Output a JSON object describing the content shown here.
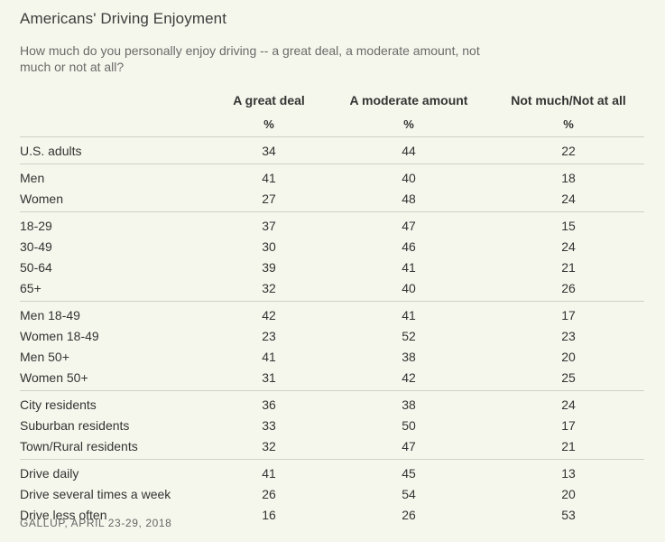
{
  "title": "Americans' Driving Enjoyment",
  "subtitle": "How much do you personally enjoy driving -- a great deal, a moderate amount, not much or not at all?",
  "columns": [
    "A great deal",
    "A moderate amount",
    "Not much/Not at all"
  ],
  "units": [
    "%",
    "%",
    "%"
  ],
  "groups": [
    {
      "rows": [
        {
          "label": "U.S. adults",
          "values": [
            "34",
            "44",
            "22"
          ]
        }
      ]
    },
    {
      "rows": [
        {
          "label": "Men",
          "values": [
            "41",
            "40",
            "18"
          ]
        },
        {
          "label": "Women",
          "values": [
            "27",
            "48",
            "24"
          ]
        }
      ]
    },
    {
      "rows": [
        {
          "label": "18-29",
          "values": [
            "37",
            "47",
            "15"
          ]
        },
        {
          "label": "30-49",
          "values": [
            "30",
            "46",
            "24"
          ]
        },
        {
          "label": "50-64",
          "values": [
            "39",
            "41",
            "21"
          ]
        },
        {
          "label": "65+",
          "values": [
            "32",
            "40",
            "26"
          ]
        }
      ]
    },
    {
      "rows": [
        {
          "label": "Men 18-49",
          "values": [
            "42",
            "41",
            "17"
          ]
        },
        {
          "label": "Women 18-49",
          "values": [
            "23",
            "52",
            "23"
          ]
        },
        {
          "label": "Men 50+",
          "values": [
            "41",
            "38",
            "20"
          ]
        },
        {
          "label": "Women 50+",
          "values": [
            "31",
            "42",
            "25"
          ]
        }
      ]
    },
    {
      "rows": [
        {
          "label": "City residents",
          "values": [
            "36",
            "38",
            "24"
          ]
        },
        {
          "label": "Suburban residents",
          "values": [
            "33",
            "50",
            "17"
          ]
        },
        {
          "label": "Town/Rural residents",
          "values": [
            "32",
            "47",
            "21"
          ]
        }
      ]
    },
    {
      "rows": [
        {
          "label": "Drive daily",
          "values": [
            "41",
            "45",
            "13"
          ]
        },
        {
          "label": "Drive several times a week",
          "values": [
            "26",
            "54",
            "20"
          ]
        },
        {
          "label": "Drive less often",
          "values": [
            "16",
            "26",
            "53"
          ]
        }
      ]
    }
  ],
  "source": "GALLUP, APRIL 23-29, 2018"
}
